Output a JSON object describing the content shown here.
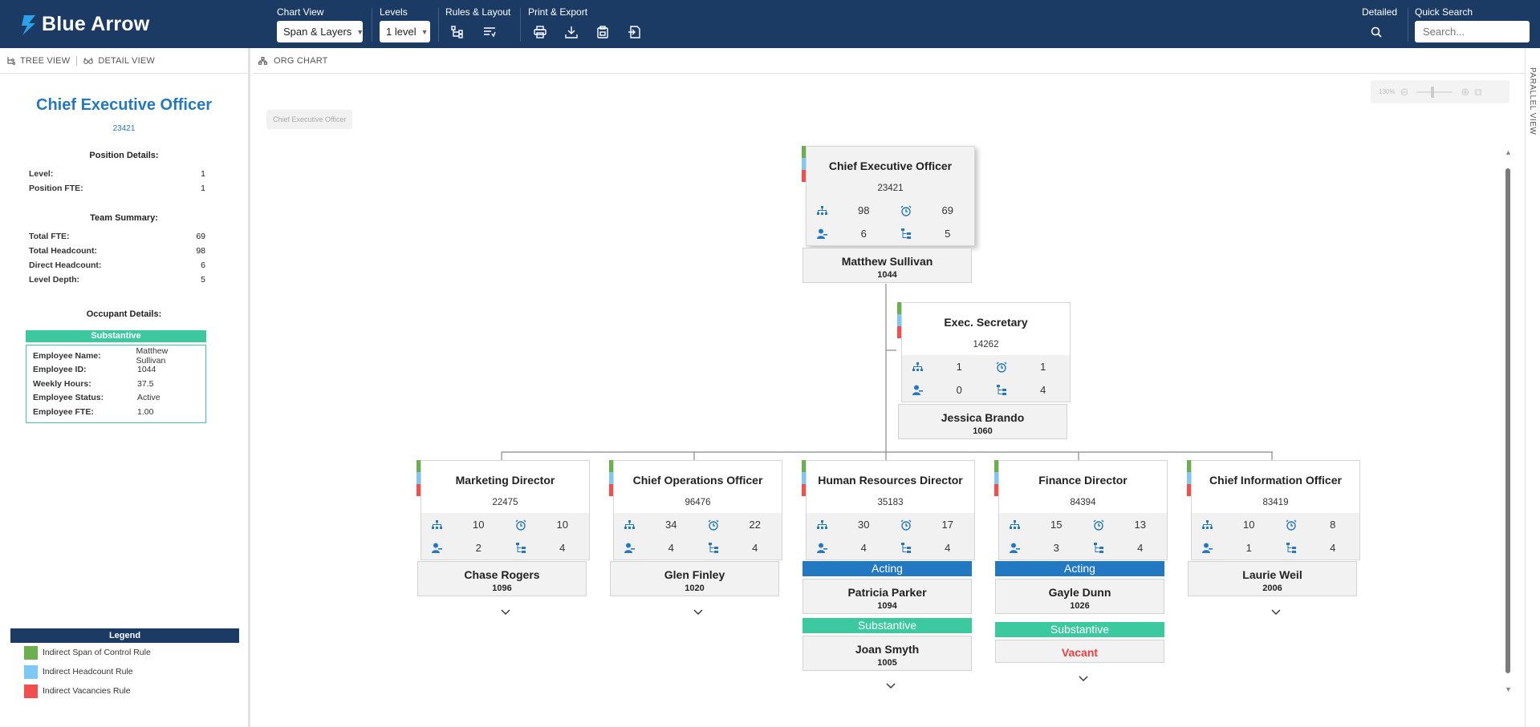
{
  "app": {
    "name": "Blue Arrow"
  },
  "toolbar": {
    "chart_view": {
      "label": "Chart View",
      "value": "Span & Layers"
    },
    "levels": {
      "label": "Levels",
      "value": "1 level"
    },
    "rules_layout": {
      "label": "Rules & Layout"
    },
    "print_export": {
      "label": "Print & Export"
    },
    "detailed": {
      "label": "Detailed"
    },
    "quick_search": {
      "label": "Quick Search",
      "placeholder": "Search..."
    }
  },
  "left_panel": {
    "tabs": [
      "TREE VIEW",
      "DETAIL VIEW"
    ],
    "title": "Chief Executive Officer",
    "code": "23421",
    "position_details": {
      "heading": "Position Details:",
      "rows": [
        {
          "k": "Level:",
          "v": "1"
        },
        {
          "k": "Position FTE:",
          "v": "1"
        }
      ]
    },
    "team_summary": {
      "heading": "Team Summary:",
      "rows": [
        {
          "k": "Total FTE:",
          "v": "69"
        },
        {
          "k": "Total Headcount:",
          "v": "98"
        },
        {
          "k": "Direct Headcount:",
          "v": "6"
        },
        {
          "k": "Level Depth:",
          "v": "5"
        }
      ]
    },
    "occupant_details": {
      "heading": "Occupant Details:",
      "badge": "Substantive",
      "rows": [
        {
          "k": "Employee Name:",
          "v": "Matthew Sullivan"
        },
        {
          "k": "Employee ID:",
          "v": "1044"
        },
        {
          "k": "Weekly Hours:",
          "v": "37.5"
        },
        {
          "k": "Employee Status:",
          "v": "Active"
        },
        {
          "k": "Employee FTE:",
          "v": "1.00"
        }
      ]
    },
    "legend": {
      "title": "Legend",
      "items": [
        {
          "label": "Indirect Span of Control Rule",
          "color": "#6ab04c"
        },
        {
          "label": "Indirect Headcount Rule",
          "color": "#7ec8f5"
        },
        {
          "label": "Indirect Vacancies Rule",
          "color": "#f24e4e"
        }
      ]
    }
  },
  "main": {
    "tab": "ORG CHART",
    "breadcrumb": "Chief Executive Officer",
    "zoom": "130%",
    "parallel_view": "PARALLEL VIEW"
  },
  "colors": {
    "accent": "#2379c1",
    "navy": "#1b3b64",
    "substantive": "#3dc9a0",
    "vacant": "#e84141"
  },
  "org": {
    "ceo": {
      "title": "Chief Executive Officer",
      "code": "23421",
      "stats": [
        "98",
        "69",
        "6",
        "5"
      ],
      "occupant": {
        "name": "Matthew Sullivan",
        "id": "1044"
      }
    },
    "secretary": {
      "title": "Exec. Secretary",
      "code": "14262",
      "stats": [
        "1",
        "1",
        "0",
        "4"
      ],
      "occupant": {
        "name": "Jessica Brando",
        "id": "1060"
      }
    },
    "reports": [
      {
        "title": "Marketing Director",
        "code": "22475",
        "stats": [
          "10",
          "10",
          "2",
          "4"
        ],
        "occupants": [
          {
            "name": "Chase Rogers",
            "id": "1096"
          }
        ]
      },
      {
        "title": "Chief Operations Officer",
        "code": "96476",
        "stats": [
          "34",
          "22",
          "4",
          "4"
        ],
        "occupants": [
          {
            "name": "Glen Finley",
            "id": "1020"
          }
        ]
      },
      {
        "title": "Human Resources Director",
        "code": "35183",
        "stats": [
          "30",
          "17",
          "4",
          "4"
        ],
        "occupants": [
          {
            "tag": "Acting",
            "name": "Patricia Parker",
            "id": "1094"
          },
          {
            "tag": "Substantive",
            "name": "Joan Smyth",
            "id": "1005"
          }
        ]
      },
      {
        "title": "Finance Director",
        "code": "84394",
        "stats": [
          "15",
          "13",
          "3",
          "4"
        ],
        "occupants": [
          {
            "tag": "Acting",
            "name": "Gayle Dunn",
            "id": "1026"
          },
          {
            "tag": "Substantive",
            "name": "Vacant",
            "id": ""
          }
        ]
      },
      {
        "title": "Chief Information Officer",
        "code": "83419",
        "stats": [
          "10",
          "8",
          "1",
          "4"
        ],
        "occupants": [
          {
            "name": "Laurie Weil",
            "id": "2006"
          }
        ]
      }
    ]
  }
}
